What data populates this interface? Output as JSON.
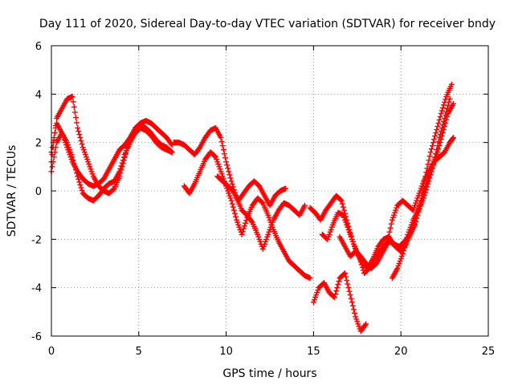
{
  "chart_data": {
    "type": "scatter",
    "title": "Day 111 of 2020, Sidereal Day-to-day VTEC variation (SDTVAR) for receiver bndy",
    "xlabel": "GPS time / hours",
    "ylabel": "SDTVAR / TECUs",
    "xlim": [
      0,
      25
    ],
    "ylim": [
      -6,
      6
    ],
    "x_ticks": [
      0,
      5,
      10,
      15,
      20,
      25
    ],
    "y_ticks": [
      -6,
      -4,
      -2,
      0,
      2,
      4,
      6
    ],
    "grid": true,
    "marker": "+",
    "color": "#ff0000",
    "series": [
      {
        "x": [
          0.0,
          0.3,
          0.6,
          0.9,
          1.2,
          1.5,
          1.8,
          2.1,
          2.4,
          2.7,
          3.0,
          3.3,
          3.6,
          3.9,
          4.2,
          4.5,
          4.8,
          5.1,
          5.4,
          5.7,
          6.0,
          6.3,
          6.6,
          6.9
        ],
        "y": [
          1.2,
          3.0,
          3.4,
          3.8,
          3.9,
          2.6,
          1.8,
          1.2,
          0.6,
          0.2,
          0.0,
          -0.1,
          0.1,
          0.6,
          1.4,
          2.2,
          2.6,
          2.8,
          2.9,
          2.8,
          2.6,
          2.4,
          2.2,
          1.9
        ]
      },
      {
        "x": [
          0.0,
          0.3,
          0.6,
          0.9,
          1.2,
          1.5,
          1.8,
          2.1,
          2.4,
          2.7,
          3.0,
          3.3,
          3.6,
          3.9,
          4.2,
          4.5,
          4.8,
          5.1,
          5.4,
          5.7,
          6.0,
          6.3,
          6.6,
          6.9
        ],
        "y": [
          0.8,
          2.0,
          2.4,
          2.0,
          1.4,
          0.6,
          -0.1,
          -0.3,
          -0.4,
          -0.2,
          0.1,
          0.3,
          0.4,
          0.8,
          1.5,
          2.0,
          2.4,
          2.6,
          2.5,
          2.3,
          2.0,
          1.8,
          1.7,
          1.6
        ]
      },
      {
        "x": [
          0.0,
          0.3,
          0.6,
          0.9,
          1.2,
          1.5,
          1.8,
          2.1,
          2.4,
          2.7,
          3.0,
          3.3,
          3.6,
          3.9,
          4.2,
          4.5,
          4.8,
          5.1,
          5.4,
          5.7,
          6.0,
          6.3,
          6.6,
          6.9
        ],
        "y": [
          1.6,
          2.8,
          2.4,
          1.8,
          1.2,
          0.8,
          0.5,
          0.3,
          0.2,
          0.3,
          0.5,
          0.9,
          1.3,
          1.7,
          1.9,
          2.2,
          2.5,
          2.7,
          2.6,
          2.4,
          2.1,
          1.9,
          1.8,
          1.6
        ]
      },
      {
        "x": [
          7.0,
          7.3,
          7.6,
          7.9,
          8.2,
          8.5,
          8.8,
          9.1,
          9.4,
          9.7,
          10.0,
          10.3,
          10.6,
          10.9,
          11.2,
          11.5,
          11.8,
          12.1,
          12.4,
          12.7,
          13.0,
          13.3,
          13.6,
          13.9,
          14.2,
          14.5
        ],
        "y": [
          2.0,
          2.0,
          1.9,
          1.7,
          1.5,
          1.8,
          2.2,
          2.5,
          2.6,
          2.2,
          1.2,
          0.4,
          -0.3,
          -0.8,
          -1.0,
          -1.3,
          -1.8,
          -2.4,
          -1.8,
          -1.2,
          -0.8,
          -0.5,
          -0.6,
          -0.8,
          -1.0,
          -0.6
        ]
      },
      {
        "x": [
          7.6,
          7.9,
          8.2,
          8.5,
          8.8,
          9.1,
          9.4,
          9.7,
          10.0,
          10.3,
          10.6,
          10.9,
          11.2,
          11.5,
          11.8,
          12.1,
          12.4,
          12.7,
          13.0,
          13.3,
          13.6,
          13.9,
          14.2,
          14.5,
          14.8
        ],
        "y": [
          0.2,
          -0.1,
          0.3,
          0.8,
          1.3,
          1.6,
          1.4,
          0.8,
          0.2,
          -0.4,
          -1.2,
          -1.8,
          -1.1,
          -0.6,
          -0.3,
          -0.5,
          -1.0,
          -1.6,
          -2.1,
          -2.5,
          -2.9,
          -3.1,
          -3.3,
          -3.5,
          -3.6
        ]
      },
      {
        "x": [
          9.5,
          9.8,
          10.1,
          10.4,
          10.7,
          11.0,
          11.3,
          11.6,
          11.9,
          12.2,
          12.5,
          12.8,
          13.1,
          13.4
        ],
        "y": [
          0.6,
          0.4,
          0.2,
          0.0,
          -0.4,
          -0.1,
          0.2,
          0.4,
          0.2,
          -0.2,
          -0.6,
          -0.2,
          0.0,
          0.1
        ]
      },
      {
        "x": [
          15.0,
          15.3,
          15.6,
          15.9,
          16.2,
          16.5,
          16.8,
          17.1,
          17.4,
          17.7,
          18.0
        ],
        "y": [
          -4.6,
          -4.0,
          -3.8,
          -4.2,
          -4.4,
          -3.6,
          -3.4,
          -4.3,
          -5.2,
          -5.8,
          -5.5
        ]
      },
      {
        "x": [
          14.8,
          15.1,
          15.4,
          15.7,
          16.0,
          16.3,
          16.6,
          16.9,
          17.2,
          17.5,
          17.8,
          18.1,
          18.4,
          18.7,
          19.0,
          19.3,
          19.6,
          19.9,
          20.2,
          20.5,
          20.8,
          21.1,
          21.4,
          21.7,
          22.0,
          22.3,
          22.6,
          22.9
        ],
        "y": [
          -0.7,
          -0.9,
          -1.2,
          -0.8,
          -0.5,
          -0.2,
          -0.4,
          -1.2,
          -2.0,
          -2.6,
          -3.0,
          -3.2,
          -2.8,
          -2.3,
          -2.0,
          -1.9,
          -2.2,
          -2.3,
          -2.1,
          -1.8,
          -1.4,
          -0.6,
          0.6,
          1.6,
          2.4,
          3.2,
          3.9,
          4.4
        ]
      },
      {
        "x": [
          15.5,
          15.8,
          16.1,
          16.4,
          16.7,
          17.0,
          17.3,
          17.6,
          17.9,
          18.2,
          18.5,
          18.8,
          19.1,
          19.4,
          19.7,
          20.0,
          20.3,
          20.6,
          20.9,
          21.2,
          21.5,
          21.8,
          22.1,
          22.4,
          22.7,
          23.0
        ],
        "y": [
          -1.8,
          -2.0,
          -1.4,
          -0.9,
          -1.0,
          -1.6,
          -2.2,
          -2.7,
          -3.4,
          -3.2,
          -2.8,
          -2.5,
          -2.2,
          -2.1,
          -2.3,
          -2.5,
          -2.2,
          -1.7,
          -1.0,
          -0.3,
          0.4,
          1.0,
          1.6,
          2.4,
          3.2,
          3.6
        ]
      },
      {
        "x": [
          16.5,
          16.8,
          17.1,
          17.4,
          17.7,
          18.0,
          18.3,
          18.6,
          18.9,
          19.2,
          19.5,
          19.8,
          20.1,
          20.4,
          20.7,
          21.0,
          21.3,
          21.6,
          21.9,
          22.2,
          22.5,
          22.8,
          23.0
        ],
        "y": [
          -1.9,
          -2.3,
          -2.7,
          -2.5,
          -2.7,
          -3.0,
          -3.2,
          -3.0,
          -2.6,
          -2.2,
          -1.2,
          -0.6,
          -0.4,
          -0.6,
          -0.8,
          -0.2,
          0.4,
          0.8,
          1.2,
          1.4,
          1.6,
          2.0,
          2.2
        ]
      },
      {
        "x": [
          19.5,
          19.8,
          20.1,
          20.4,
          20.7,
          21.0,
          21.3,
          21.6,
          21.9,
          22.2,
          22.5,
          22.8
        ],
        "y": [
          -3.6,
          -3.2,
          -2.6,
          -1.8,
          -1.2,
          -0.8,
          -0.3,
          0.4,
          1.2,
          2.2,
          3.0,
          3.8
        ]
      }
    ]
  }
}
